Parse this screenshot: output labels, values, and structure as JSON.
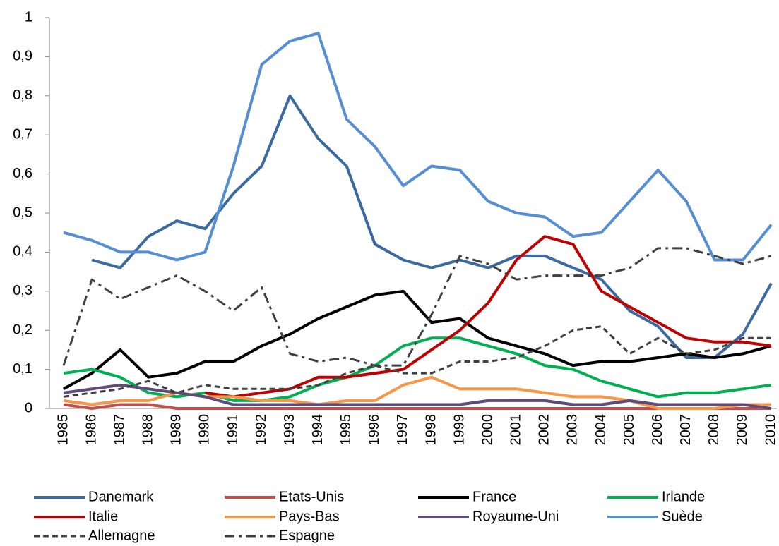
{
  "chart_data": {
    "type": "line",
    "categories": [
      "1985",
      "1986",
      "1987",
      "1988",
      "1989",
      "1990",
      "1991",
      "1992",
      "1993",
      "1994",
      "1995",
      "1996",
      "1997",
      "1998",
      "1999",
      "2000",
      "2001",
      "2002",
      "2003",
      "2004",
      "2005",
      "2006",
      "2007",
      "2008",
      "2009",
      "2010"
    ],
    "ylim": [
      0,
      1
    ],
    "yticks": [
      0,
      {
        "value": 0.1,
        "label": "0,1"
      },
      {
        "value": 0.2,
        "label": "0,2"
      },
      {
        "value": 0.3,
        "label": "0,3"
      },
      {
        "value": 0.4,
        "label": "0,4"
      },
      {
        "value": 0.5,
        "label": "0,5"
      },
      {
        "value": 0.6,
        "label": "0,6"
      },
      {
        "value": 0.7,
        "label": "0,7"
      },
      {
        "value": 0.8,
        "label": "0,8"
      },
      {
        "value": 0.9,
        "label": "0,9"
      },
      1
    ],
    "grid": false,
    "legend": "bottom",
    "series": [
      {
        "name": "Danemark",
        "color": "#3a6aa2",
        "linestyle": "solid",
        "values": [
          null,
          0.38,
          0.36,
          0.44,
          0.48,
          0.46,
          0.55,
          0.62,
          0.8,
          0.69,
          0.62,
          0.42,
          0.38,
          0.36,
          0.38,
          0.36,
          0.39,
          0.39,
          0.36,
          0.33,
          0.25,
          0.21,
          0.13,
          0.13,
          0.19,
          0.32
        ]
      },
      {
        "name": "Etats-Unis",
        "color": "#c0504d",
        "linestyle": "solid",
        "values": [
          0.01,
          0,
          0.01,
          0.01,
          0,
          0,
          0,
          0,
          0,
          0,
          0,
          0,
          0,
          0,
          0,
          0,
          0,
          0,
          0,
          0,
          0,
          0,
          0,
          0,
          0,
          0
        ]
      },
      {
        "name": "France",
        "color": "#000000",
        "linestyle": "solid",
        "values": [
          0.05,
          0.09,
          0.15,
          0.08,
          0.09,
          0.12,
          0.12,
          0.16,
          0.19,
          0.23,
          0.26,
          0.29,
          0.3,
          0.22,
          0.23,
          0.18,
          0.16,
          0.14,
          0.11,
          0.12,
          0.12,
          0.13,
          0.14,
          0.13,
          0.14,
          0.16
        ]
      },
      {
        "name": "Irlande",
        "color": "#00b050",
        "linestyle": "solid",
        "values": [
          0.09,
          0.1,
          0.08,
          0.04,
          0.03,
          0.04,
          0.02,
          0.02,
          0.03,
          0.06,
          0.08,
          0.11,
          0.16,
          0.18,
          0.18,
          0.16,
          0.14,
          0.11,
          0.1,
          0.07,
          0.05,
          0.03,
          0.04,
          0.04,
          0.05,
          0.06
        ]
      },
      {
        "name": "Italie",
        "color": "#c00000",
        "linestyle": "solid",
        "values": [
          null,
          null,
          null,
          null,
          null,
          0.04,
          0.03,
          0.04,
          0.05,
          0.08,
          0.08,
          0.09,
          0.1,
          0.15,
          0.2,
          0.27,
          0.38,
          0.44,
          0.42,
          0.3,
          0.26,
          0.22,
          0.18,
          0.17,
          0.17,
          0.16
        ]
      },
      {
        "name": "Pays-Bas",
        "color": "#f79646",
        "linestyle": "solid",
        "values": [
          0.02,
          0.01,
          0.02,
          0.02,
          0.04,
          0.03,
          0.03,
          0.02,
          0.02,
          0.01,
          0.02,
          0.02,
          0.06,
          0.08,
          0.05,
          0.05,
          0.05,
          0.04,
          0.03,
          0.03,
          0.02,
          0,
          0,
          0,
          0.01,
          0.01
        ]
      },
      {
        "name": "Royaume-Uni",
        "color": "#604a7b",
        "linestyle": "solid",
        "values": [
          0.04,
          0.05,
          0.06,
          0.05,
          0.04,
          0.03,
          0.01,
          0.01,
          0.01,
          0.01,
          0.01,
          0.01,
          0.01,
          0.01,
          0.01,
          0.02,
          0.02,
          0.02,
          0.01,
          0.01,
          0.02,
          0.01,
          0.01,
          0.01,
          0.01,
          0
        ]
      },
      {
        "name": "Suède",
        "color": "#558ed5",
        "linestyle": "solid",
        "values": [
          0.45,
          0.43,
          0.4,
          0.4,
          0.38,
          0.4,
          0.62,
          0.88,
          0.94,
          0.96,
          0.74,
          0.67,
          0.57,
          0.62,
          0.61,
          0.53,
          0.5,
          0.49,
          0.44,
          0.45,
          0.53,
          0.61,
          0.53,
          0.38,
          0.38,
          0.47
        ]
      },
      {
        "name": "Allemagne",
        "color": "#404040",
        "linestyle": "dashed",
        "values": [
          0.03,
          0.04,
          0.05,
          0.07,
          0.04,
          0.06,
          0.05,
          0.05,
          0.05,
          0.06,
          0.09,
          0.11,
          0.09,
          0.09,
          0.12,
          0.12,
          0.13,
          0.16,
          0.2,
          0.21,
          0.14,
          0.18,
          0.14,
          0.15,
          0.18,
          0.18
        ]
      },
      {
        "name": "Espagne",
        "color": "#404040",
        "linestyle": "dashdot",
        "values": [
          0.11,
          0.33,
          0.28,
          0.31,
          0.34,
          0.3,
          0.25,
          0.31,
          0.14,
          0.12,
          0.13,
          0.11,
          0.11,
          0.24,
          0.39,
          0.37,
          0.33,
          0.34,
          0.34,
          0.34,
          0.36,
          0.41,
          0.41,
          0.39,
          0.37,
          0.39
        ]
      }
    ]
  }
}
